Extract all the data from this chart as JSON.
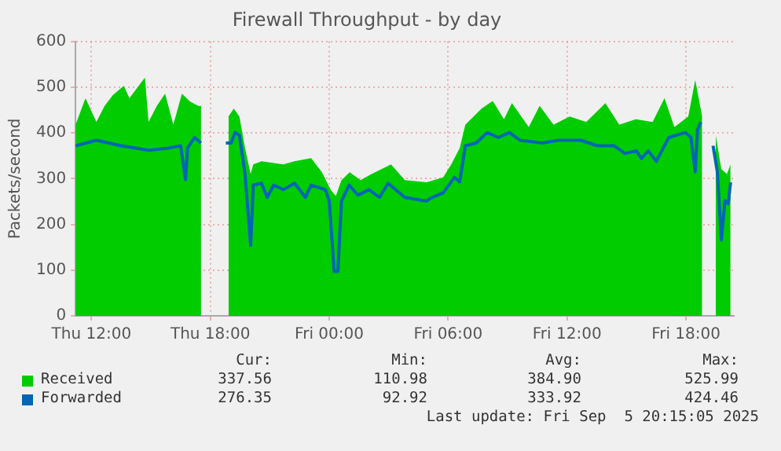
{
  "chart_data": {
    "type": "area",
    "title": "Firewall Throughput - by day",
    "ylabel": "Packets/second",
    "xlim": [
      "2025-09-04T11:12",
      "2025-09-05T20:25"
    ],
    "xticks": [
      {
        "value": "2025-09-04T12:00",
        "label": "Thu 12:00"
      },
      {
        "value": "2025-09-04T18:00",
        "label": "Thu 18:00"
      },
      {
        "value": "2025-09-05T00:00",
        "label": "Fri 00:00"
      },
      {
        "value": "2025-09-05T06:00",
        "label": "Fri 06:00"
      },
      {
        "value": "2025-09-05T12:00",
        "label": "Fri 12:00"
      },
      {
        "value": "2025-09-05T18:00",
        "label": "Fri 18:00"
      }
    ],
    "ylim": [
      0,
      600
    ],
    "yticks": [
      0,
      100,
      200,
      300,
      400,
      500,
      600
    ],
    "grid": true,
    "legend": "bottom",
    "series": [
      {
        "name": "Received",
        "color": "#00cc00",
        "x": [
          "2025-09-04T11:12",
          "2025-09-04T11:42",
          "2025-09-04T12:15",
          "2025-09-04T12:40",
          "2025-09-04T13:05",
          "2025-09-04T13:38",
          "2025-09-04T13:55",
          "2025-09-04T14:20",
          "2025-09-04T14:42",
          "2025-09-04T14:53",
          "2025-09-04T15:18",
          "2025-09-04T15:43",
          "2025-09-04T16:08",
          "2025-09-04T16:34",
          "2025-09-04T16:58",
          "2025-09-04T17:23",
          "2025-09-04T17:32",
          "2025-09-04T18:12",
          "2025-09-04T18:55",
          "2025-09-04T19:11",
          "2025-09-04T19:28",
          "2025-09-04T19:45",
          "2025-09-04T20:02",
          "2025-09-04T20:10",
          "2025-09-04T20:35",
          "2025-09-04T21:41",
          "2025-09-04T22:15",
          "2025-09-04T23:05",
          "2025-09-04T23:38",
          "2025-09-05T00:04",
          "2025-09-05T00:20",
          "2025-09-05T00:37",
          "2025-09-05T01:02",
          "2025-09-05T01:35",
          "2025-09-05T02:08",
          "2025-09-05T03:07",
          "2025-09-05T03:49",
          "2025-09-05T04:55",
          "2025-09-05T05:45",
          "2025-09-05T06:10",
          "2025-09-05T06:35",
          "2025-09-05T06:52",
          "2025-09-05T07:41",
          "2025-09-05T08:15",
          "2025-09-05T08:49",
          "2025-09-05T09:13",
          "2025-09-05T10:04",
          "2025-09-05T10:37",
          "2025-09-05T11:19",
          "2025-09-05T12:08",
          "2025-09-05T12:58",
          "2025-09-05T13:56",
          "2025-09-05T14:38",
          "2025-09-05T15:28",
          "2025-09-05T16:19",
          "2025-09-05T16:55",
          "2025-09-05T17:25",
          "2025-09-05T18:07",
          "2025-09-05T18:28",
          "2025-09-05T18:40",
          "2025-09-05T18:49",
          "2025-09-05T19:06",
          "2025-09-05T19:30",
          "2025-09-05T19:47",
          "2025-09-05T20:04",
          "2025-09-05T20:15"
        ],
        "values": [
          418,
          476,
          424,
          459,
          483,
          503,
          476,
          500,
          521,
          424,
          459,
          486,
          418,
          486,
          469,
          459,
          459,
          null,
          436,
          453,
          436,
          367,
          310,
          331,
          338,
          331,
          338,
          345,
          314,
          276,
          262,
          297,
          314,
          297,
          310,
          331,
          297,
          292,
          303,
          332,
          367,
          418,
          453,
          470,
          430,
          465,
          413,
          459,
          418,
          436,
          424,
          465,
          418,
          430,
          424,
          476,
          413,
          436,
          516,
          470,
          436,
          null,
          395,
          321,
          310,
          331
        ]
      },
      {
        "name": "Forwarded",
        "color": "#0066b3",
        "type": "line",
        "x": [
          "2025-09-04T11:12",
          "2025-09-04T12:15",
          "2025-09-04T13:30",
          "2025-09-04T14:54",
          "2025-09-04T15:54",
          "2025-09-04T16:30",
          "2025-09-04T16:45",
          "2025-09-04T16:51",
          "2025-09-04T17:12",
          "2025-09-04T17:32",
          "2025-09-04T18:12",
          "2025-09-04T18:47",
          "2025-09-04T19:03",
          "2025-09-04T19:15",
          "2025-09-04T19:28",
          "2025-09-04T19:45",
          "2025-09-04T20:02",
          "2025-09-04T20:10",
          "2025-09-04T20:35",
          "2025-09-04T20:52",
          "2025-09-04T21:12",
          "2025-09-04T21:41",
          "2025-09-04T22:15",
          "2025-09-04T22:48",
          "2025-09-04T23:05",
          "2025-09-04T23:48",
          "2025-09-05T00:00",
          "2025-09-05T00:15",
          "2025-09-05T00:26",
          "2025-09-05T00:37",
          "2025-09-05T01:00",
          "2025-09-05T01:27",
          "2025-09-05T02:00",
          "2025-09-05T02:32",
          "2025-09-05T02:58",
          "2025-09-05T03:49",
          "2025-09-05T04:55",
          "2025-09-05T05:05",
          "2025-09-05T05:45",
          "2025-09-05T06:19",
          "2025-09-05T06:35",
          "2025-09-05T06:52",
          "2025-09-05T07:25",
          "2025-09-05T07:58",
          "2025-09-05T08:32",
          "2025-09-05T09:05",
          "2025-09-05T09:38",
          "2025-09-05T10:45",
          "2025-09-05T11:35",
          "2025-09-05T12:41",
          "2025-09-05T13:32",
          "2025-09-05T14:22",
          "2025-09-05T14:55",
          "2025-09-05T15:30",
          "2025-09-05T15:45",
          "2025-09-05T16:06",
          "2025-09-05T16:30",
          "2025-09-05T17:08",
          "2025-09-05T17:58",
          "2025-09-05T18:15",
          "2025-09-05T18:28",
          "2025-09-05T18:35",
          "2025-09-05T18:45",
          "2025-09-05T19:06",
          "2025-09-05T19:22",
          "2025-09-05T19:35",
          "2025-09-05T19:47",
          "2025-09-05T19:58",
          "2025-09-05T20:08",
          "2025-09-05T20:15"
        ],
        "values": [
          372,
          384,
          372,
          362,
          367,
          372,
          298,
          367,
          390,
          378,
          null,
          378,
          378,
          401,
          395,
          310,
          154,
          286,
          290,
          259,
          286,
          276,
          290,
          259,
          286,
          276,
          251,
          97,
          97,
          251,
          286,
          264,
          276,
          259,
          290,
          259,
          251,
          257,
          269,
          303,
          293,
          372,
          378,
          401,
          390,
          401,
          384,
          378,
          384,
          384,
          372,
          372,
          355,
          361,
          344,
          361,
          338,
          390,
          401,
          390,
          315,
          407,
          424,
          null,
          372,
          315,
          166,
          252,
          245,
          292
        ]
      }
    ],
    "annotations": [
      "Cur:",
      "Min:",
      "Avg:",
      "Max:",
      "337.56",
      "110.98",
      "384.90",
      "525.99",
      "276.35",
      "92.92",
      "333.92",
      "424.46",
      "Last update: Fri Sep  5 20:15:05 2025"
    ]
  }
}
